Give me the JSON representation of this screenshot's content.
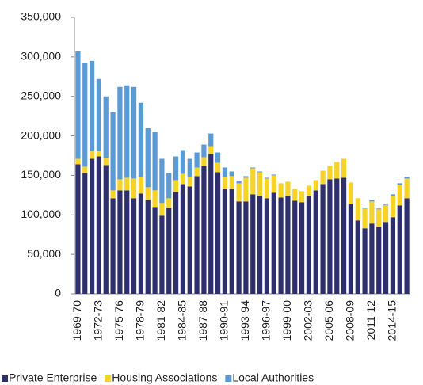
{
  "chart_data": {
    "type": "stacked-bar",
    "categories": [
      "1969-70",
      null,
      null,
      "1972-73",
      null,
      null,
      "1975-76",
      null,
      null,
      "1978-79",
      null,
      null,
      "1981-82",
      null,
      null,
      "1984-85",
      null,
      null,
      "1987-88",
      null,
      null,
      "1990-91",
      null,
      null,
      "1993-94",
      null,
      null,
      "1996-97",
      null,
      null,
      "1999-00",
      null,
      null,
      "2002-03",
      null,
      null,
      "2005-06",
      null,
      null,
      "2008-09",
      null,
      null,
      "2011-12",
      null,
      null,
      "2014-15",
      null,
      null
    ],
    "series": [
      {
        "name": "Private Enterprise",
        "color": "#2e2f6d",
        "values": [
          164000,
          153000,
          171000,
          174000,
          163000,
          121000,
          131000,
          131000,
          121000,
          127000,
          119000,
          110000,
          99000,
          109000,
          129000,
          139000,
          136000,
          149000,
          162000,
          177000,
          154000,
          133000,
          133000,
          117000,
          117000,
          126000,
          124000,
          121000,
          128000,
          122000,
          124000,
          118000,
          116000,
          124000,
          131000,
          139000,
          145000,
          146000,
          147000,
          114000,
          93000,
          83000,
          89000,
          85000,
          91000,
          97000,
          112000,
          121000
        ]
      },
      {
        "name": "Housing Associations",
        "color": "#f5d327",
        "values": [
          7000,
          8000,
          10000,
          7000,
          9000,
          10000,
          14000,
          16000,
          25000,
          21000,
          16000,
          21000,
          16000,
          12000,
          15000,
          13000,
          12000,
          11000,
          11000,
          10000,
          12000,
          15000,
          16000,
          23000,
          30000,
          33000,
          30000,
          25000,
          22000,
          18000,
          18000,
          15000,
          14000,
          13000,
          13000,
          17000,
          17000,
          21000,
          24000,
          27000,
          28000,
          25000,
          28000,
          22000,
          21000,
          27000,
          26000,
          25000
        ]
      },
      {
        "name": "Local Authorities",
        "color": "#5b9bd5",
        "values": [
          136000,
          131000,
          114000,
          91000,
          78000,
          99000,
          117000,
          117000,
          116000,
          94000,
          75000,
          74000,
          56000,
          32000,
          30000,
          30000,
          23000,
          19000,
          16000,
          16000,
          13000,
          12000,
          6000,
          3000,
          2000,
          1000,
          1000,
          1000,
          1000,
          0,
          0,
          0,
          0,
          0,
          0,
          0,
          0,
          0,
          0,
          0,
          0,
          1000,
          2000,
          1000,
          1000,
          2000,
          2000,
          2000
        ]
      }
    ],
    "ylim": [
      0,
      350000
    ],
    "yticks": [
      0,
      {
        "value": 50000,
        "label": "50,000"
      },
      {
        "value": 100000,
        "label": "100,000"
      },
      {
        "value": 150000,
        "label": "150,000"
      },
      {
        "value": 200000,
        "label": "200,000"
      },
      {
        "value": 250000,
        "label": "250,000"
      },
      {
        "value": 300000,
        "label": "300,000"
      },
      {
        "value": 350000,
        "label": "350,000"
      }
    ],
    "legend": "bottom"
  }
}
